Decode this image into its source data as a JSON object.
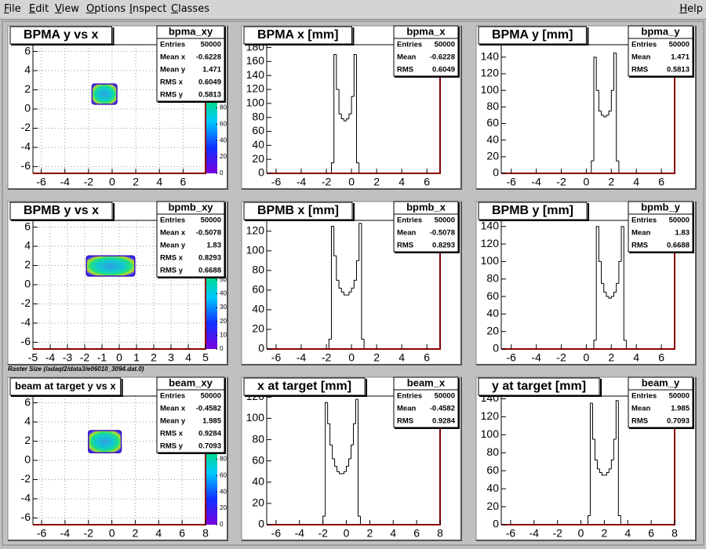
{
  "menu": [
    "File",
    "Edit",
    "View",
    "Options",
    "Inspect",
    "Classes"
  ],
  "help": "Help",
  "note": "Raster Size (/adaql2/data3/e06010_3094.dat.0)",
  "pads": [
    {
      "type": "hist2d",
      "title": "BPMA y vs x",
      "xlim": [
        -6.7,
        7.9
      ],
      "xticks": [
        -6,
        -4,
        -2,
        0,
        2,
        4,
        6
      ],
      "ylim": [
        -6.7,
        6.7
      ],
      "yticks": [
        -6,
        -4,
        -2,
        0,
        2,
        4,
        6
      ],
      "zlim": [
        0,
        157
      ],
      "zticks": [
        0,
        20,
        40,
        60,
        80
      ],
      "grid": true,
      "x_range": [
        -1.7,
        0.4
      ],
      "y_range": [
        0.5,
        2.6
      ],
      "stats": {
        "name": "bpma_xy",
        "rows": [
          [
            "Entries",
            50000
          ],
          [
            "Mean x",
            -0.6228
          ],
          [
            "Mean y",
            1.471
          ],
          [
            "RMS x",
            0.6049
          ],
          [
            "RMS y",
            0.5813
          ]
        ]
      }
    },
    {
      "type": "hist1d",
      "title": "BPMA x [mm]",
      "xlim": [
        -6.75,
        7.05
      ],
      "xticks": [
        -6,
        -4,
        -2,
        0,
        2,
        4,
        6
      ],
      "ylim": [
        0,
        184
      ],
      "yticks": [
        0,
        20,
        40,
        60,
        80,
        100,
        120,
        140,
        160,
        180
      ],
      "bins": [
        -1.6,
        -1.4,
        -1.2,
        -1.0,
        -0.8,
        -0.6,
        -0.4,
        -0.2,
        0.0,
        0.2,
        0.4,
        0.6
      ],
      "counts": [
        15,
        170,
        120,
        85,
        78,
        75,
        78,
        85,
        110,
        170,
        15
      ],
      "stats": {
        "name": "bpma_x",
        "rows": [
          [
            "Entries",
            50000
          ],
          [
            "Mean",
            -0.6228
          ],
          [
            "RMS",
            0.6049
          ]
        ]
      }
    },
    {
      "type": "hist1d",
      "title": "BPMA y [mm]",
      "xlim": [
        -6.8,
        7.06
      ],
      "xticks": [
        -6,
        -4,
        -2,
        0,
        2,
        4,
        6
      ],
      "ylim": [
        0,
        155
      ],
      "yticks": [
        0,
        20,
        40,
        60,
        80,
        100,
        120,
        140
      ],
      "bins": [
        0.4,
        0.6,
        0.8,
        1.0,
        1.2,
        1.4,
        1.6,
        1.8,
        2.0,
        2.2,
        2.4,
        2.6
      ],
      "counts": [
        15,
        140,
        100,
        75,
        70,
        68,
        70,
        75,
        100,
        145,
        15
      ],
      "stats": {
        "name": "bpma_y",
        "rows": [
          [
            "Entries",
            50000
          ],
          [
            "Mean",
            1.471
          ],
          [
            "RMS",
            0.5813
          ]
        ]
      }
    },
    {
      "type": "hist2d",
      "title": "BPMB y vs x",
      "xlim": [
        -5,
        5
      ],
      "xticks": [
        -5,
        -4,
        -3,
        -2,
        -1,
        0,
        1,
        2,
        3,
        4,
        5
      ],
      "ylim": [
        -6.7,
        6.7
      ],
      "yticks": [
        -6,
        -4,
        -2,
        0,
        2,
        4,
        6
      ],
      "zlim": [
        0,
        93
      ],
      "zticks": [
        0,
        10,
        20,
        30,
        40,
        50
      ],
      "grid": true,
      "x_range": [
        -1.9,
        0.9
      ],
      "y_range": [
        0.9,
        3.0
      ],
      "stats": {
        "name": "bpmb_xy",
        "rows": [
          [
            "Entries",
            50000
          ],
          [
            "Mean x",
            -0.5078
          ],
          [
            "Mean y",
            1.83
          ],
          [
            "RMS x",
            0.8293
          ],
          [
            "RMS y",
            0.6688
          ]
        ]
      }
    },
    {
      "type": "hist1d",
      "title": "BPMB x [mm]",
      "xlim": [
        -6.75,
        7.05
      ],
      "xticks": [
        -6,
        -4,
        -2,
        0,
        2,
        4,
        6
      ],
      "ylim": [
        0,
        131
      ],
      "yticks": [
        0,
        20,
        40,
        60,
        80,
        100,
        120
      ],
      "bins": [
        -1.8,
        -1.6,
        -1.4,
        -1.2,
        -1.0,
        -0.8,
        -0.6,
        -0.4,
        -0.2,
        0.0,
        0.2,
        0.4,
        0.6,
        0.8,
        1.0
      ],
      "counts": [
        10,
        125,
        95,
        70,
        62,
        58,
        55,
        55,
        58,
        62,
        70,
        90,
        128,
        10
      ],
      "stats": {
        "name": "bpmb_x",
        "rows": [
          [
            "Entries",
            50000
          ],
          [
            "Mean",
            -0.5078
          ],
          [
            "RMS",
            0.8293
          ]
        ]
      }
    },
    {
      "type": "hist1d",
      "title": "BPMB y [mm]",
      "xlim": [
        -6.8,
        7.06
      ],
      "xticks": [
        -6,
        -4,
        -2,
        0,
        2,
        4,
        6
      ],
      "ylim": [
        0,
        147
      ],
      "yticks": [
        0,
        20,
        40,
        60,
        80,
        100,
        120,
        140
      ],
      "bins": [
        0.6,
        0.8,
        1.0,
        1.2,
        1.4,
        1.6,
        1.8,
        2.0,
        2.2,
        2.4,
        2.6,
        2.8,
        3.0,
        3.2
      ],
      "counts": [
        10,
        140,
        100,
        75,
        65,
        60,
        58,
        60,
        65,
        75,
        100,
        140,
        10
      ],
      "stats": {
        "name": "bpmb_y",
        "rows": [
          [
            "Entries",
            50000
          ],
          [
            "Mean",
            1.83
          ],
          [
            "RMS",
            0.6688
          ]
        ]
      }
    },
    {
      "type": "hist2d",
      "title": "beam at target y vs x",
      "xlim": [
        -6.74,
        8
      ],
      "xticks": [
        -6,
        -4,
        -2,
        0,
        2,
        4,
        6,
        8
      ],
      "ylim": [
        -6.7,
        6.7
      ],
      "yticks": [
        -6,
        -4,
        -2,
        0,
        2,
        4,
        6
      ],
      "zlim": [
        0,
        157
      ],
      "zticks": [
        0,
        20,
        40,
        60,
        80
      ],
      "grid": true,
      "x_range": [
        -2.0,
        0.8
      ],
      "y_range": [
        0.8,
        3.1
      ],
      "stats": {
        "name": "beam_xy",
        "rows": [
          [
            "Entries",
            50000
          ],
          [
            "Mean x",
            -0.4582
          ],
          [
            "Mean y",
            1.985
          ],
          [
            "RMS x",
            0.9284
          ],
          [
            "RMS y",
            0.7093
          ]
        ]
      }
    },
    {
      "type": "hist1d",
      "title": "x at target [mm]",
      "xlim": [
        -6.8,
        8
      ],
      "xticks": [
        -6,
        -4,
        -2,
        0,
        2,
        4,
        6,
        8
      ],
      "ylim": [
        0,
        121
      ],
      "yticks": [
        0,
        20,
        40,
        60,
        80,
        100,
        120
      ],
      "bins": [
        -2.0,
        -1.8,
        -1.6,
        -1.4,
        -1.2,
        -1.0,
        -0.8,
        -0.6,
        -0.4,
        -0.2,
        0.0,
        0.2,
        0.4,
        0.6,
        0.8,
        1.0,
        1.2
      ],
      "counts": [
        8,
        115,
        95,
        75,
        62,
        55,
        50,
        48,
        48,
        50,
        55,
        62,
        75,
        95,
        118,
        8
      ],
      "stats": {
        "name": "beam_x",
        "rows": [
          [
            "Entries",
            50000
          ],
          [
            "Mean",
            -0.4582
          ],
          [
            "RMS",
            0.9284
          ]
        ]
      }
    },
    {
      "type": "hist1d",
      "title": "y at target [mm]",
      "xlim": [
        -6.8,
        8
      ],
      "xticks": [
        -6,
        -4,
        -2,
        0,
        2,
        4,
        6,
        8
      ],
      "ylim": [
        0,
        143
      ],
      "yticks": [
        0,
        20,
        40,
        60,
        80,
        100,
        120,
        140
      ],
      "bins": [
        0.6,
        0.8,
        1.0,
        1.2,
        1.4,
        1.6,
        1.8,
        2.0,
        2.2,
        2.4,
        2.6,
        2.8,
        3.0,
        3.2,
        3.4
      ],
      "counts": [
        10,
        135,
        95,
        72,
        62,
        58,
        55,
        55,
        58,
        62,
        72,
        95,
        138,
        10
      ],
      "stats": {
        "name": "beam_y",
        "rows": [
          [
            "Entries",
            50000
          ],
          [
            "Mean",
            1.985
          ],
          [
            "RMS",
            0.7093
          ]
        ]
      }
    }
  ]
}
